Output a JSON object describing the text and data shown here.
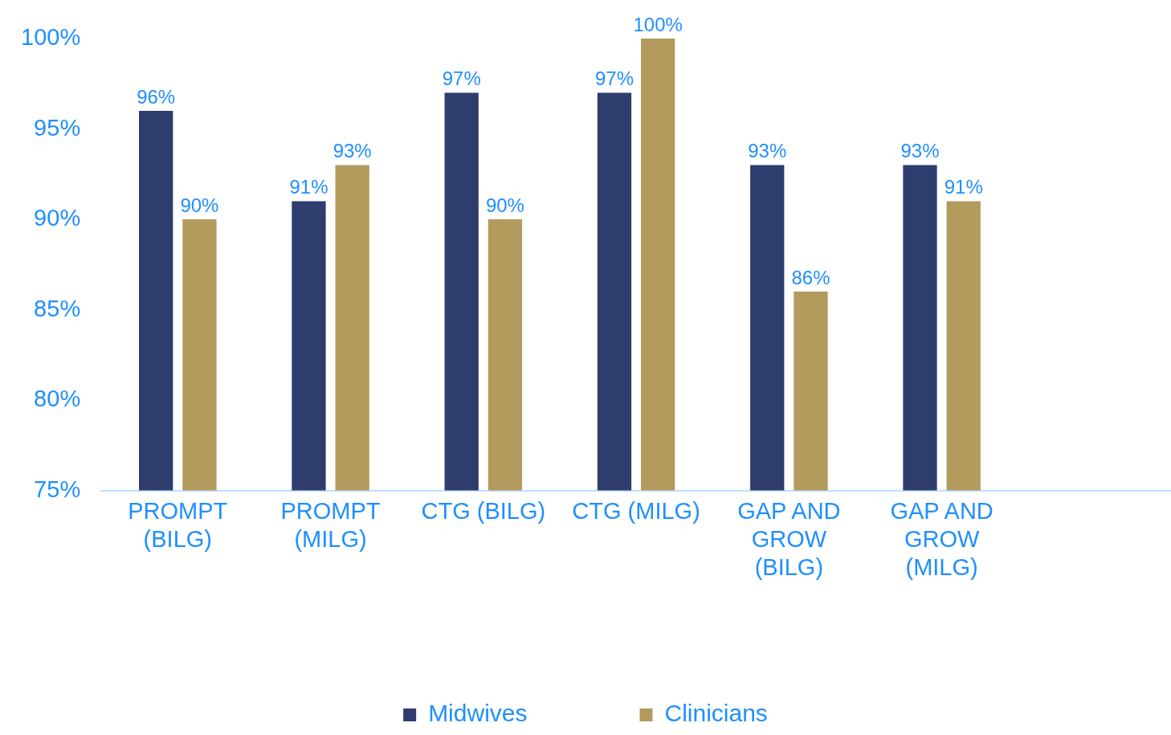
{
  "chart_data": {
    "type": "bar",
    "categories": [
      "PROMPT (BILG)",
      "PROMPT (MILG)",
      "CTG (BILG)",
      "CTG (MILG)",
      "GAP AND GROW (BILG)",
      "GAP AND GROW (MILG)",
      null
    ],
    "series": [
      {
        "name": "Midwives",
        "color": "#2e3d6e",
        "values": [
          96,
          91,
          97,
          97,
          93,
          93,
          null
        ],
        "value_labels": [
          "96%",
          "91%",
          "97%",
          "97%",
          "93%",
          "93%",
          null
        ]
      },
      {
        "name": "Clinicians",
        "color": "#b39b5e",
        "values": [
          90,
          93,
          90,
          100,
          86,
          91,
          null
        ],
        "value_labels": [
          "90%",
          "93%",
          "90%",
          "100%",
          "86%",
          "91%",
          null
        ]
      }
    ],
    "ylim": [
      75,
      100
    ],
    "yticks": [
      {
        "value": 75,
        "label": "75%"
      },
      {
        "value": 80,
        "label": "80%"
      },
      {
        "value": 85,
        "label": "85%"
      },
      {
        "value": 90,
        "label": "90%"
      },
      {
        "value": 95,
        "label": "95%"
      },
      {
        "value": 100,
        "label": "100%"
      }
    ],
    "grid": false,
    "legend": "bottom"
  }
}
